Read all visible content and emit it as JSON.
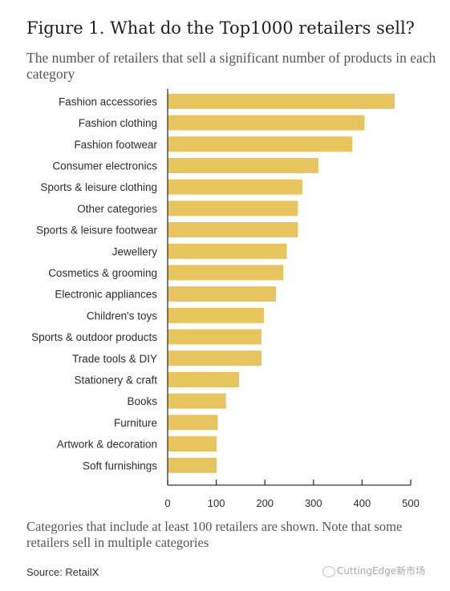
{
  "title": "Figure 1. What do the Top1000 retailers sell?",
  "subtitle": "The number of retailers that sell a significant number of products in each category",
  "note": "Categories that include at least 100 retailers are shown. Note that some retailers sell in multiple categories",
  "source": "Source: RetailX",
  "watermark": "CuttingEdge新市场",
  "colors": {
    "bar": "#E8C45C",
    "axis": "#333333",
    "text": "#2b2b2b"
  },
  "chart_data": {
    "type": "bar",
    "orientation": "horizontal",
    "categories": [
      "Fashion accessories",
      "Fashion clothing",
      "Fashion footwear",
      "Consumer electronics",
      "Sports & leisure clothing",
      "Other categories",
      "Sports & leisure footwear",
      "Jewellery",
      "Cosmetics & grooming",
      "Electronic appliances",
      "Children's toys",
      "Sports & outdoor products",
      "Trade tools & DIY",
      "Stationery & craft",
      "Books",
      "Furniture",
      "Artwork & decoration",
      "Soft furnishings"
    ],
    "values": [
      467,
      405,
      380,
      310,
      277,
      268,
      268,
      245,
      238,
      223,
      198,
      193,
      193,
      147,
      120,
      103,
      101,
      101
    ],
    "xlim": [
      0,
      500
    ],
    "xticks": [
      0,
      100,
      200,
      300,
      400,
      500
    ],
    "grid": false,
    "legend": false
  }
}
